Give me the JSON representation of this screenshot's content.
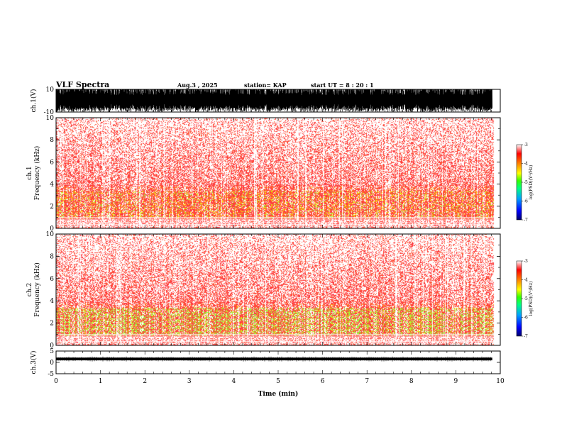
{
  "header": {
    "title": "VLF Spectra",
    "date": "Aug.3 , 2025",
    "station": "station= KAP",
    "start": "start UT = 8 : 20 : 1"
  },
  "colors": {
    "spec_bg": "#ffffff",
    "low": "#ff2a2a",
    "mid": "#ffcc00",
    "high": "#66ff33",
    "waveform": "#000000"
  },
  "chart_data": [
    {
      "type": "line",
      "name": "ch1-waveform",
      "ylabel": "ch.1(V)",
      "ylim": [
        -10,
        10
      ],
      "yticks": [
        {
          "v": 10,
          "t": "10"
        },
        {
          "v": -10,
          "t": "-10"
        }
      ],
      "xlim": [
        0,
        10
      ],
      "note": "dense broadband waveform filling ~+-10 V until ~9.8 min"
    },
    {
      "type": "heatmap",
      "name": "ch1-spectrogram",
      "ylabel": "ch.1\nFrequency (kHz)",
      "ylim": [
        0,
        10
      ],
      "yticks": [
        {
          "v": 0,
          "t": "0"
        },
        {
          "v": 2,
          "t": "2"
        },
        {
          "v": 4,
          "t": "4"
        },
        {
          "v": 6,
          "t": "6"
        },
        {
          "v": 8,
          "t": "8"
        },
        {
          "v": 10,
          "t": "10"
        }
      ],
      "xlim": [
        0,
        10
      ],
      "data_end_min": 9.85,
      "colorbar": {
        "label": "log(PSD)(V²/Hz)",
        "range": [
          -7,
          -3
        ],
        "ticks": [
          "-3",
          "-4",
          "-5",
          "-6",
          "-7"
        ]
      }
    },
    {
      "type": "heatmap",
      "name": "ch2-spectrogram",
      "ylabel": "ch.2\nFrequency (kHz)",
      "ylim": [
        0,
        10
      ],
      "yticks": [
        {
          "v": 0,
          "t": "0"
        },
        {
          "v": 2,
          "t": "2"
        },
        {
          "v": 4,
          "t": "4"
        },
        {
          "v": 6,
          "t": "6"
        },
        {
          "v": 8,
          "t": "8"
        },
        {
          "v": 10,
          "t": "10"
        }
      ],
      "xlim": [
        0,
        10
      ],
      "data_end_min": 9.85,
      "colorbar": {
        "label": "log(PSD)(V²/Hz)",
        "range": [
          -7,
          -3
        ],
        "ticks": [
          "-3",
          "-4",
          "-5",
          "-6",
          "-7"
        ]
      }
    },
    {
      "type": "line",
      "name": "ch3-waveform",
      "ylabel": "ch.3(V)",
      "ylim": [
        -5,
        5
      ],
      "yticks": [
        {
          "v": 5,
          "t": "5"
        },
        {
          "v": 0,
          "t": "0"
        },
        {
          "v": -5,
          "t": "-5"
        }
      ],
      "xlim": [
        0,
        10
      ],
      "note": "narrow band around ~1.5 V until ~9.8 min",
      "center": 1.5,
      "amplitude": 0.6
    }
  ],
  "xaxis": {
    "label": "Time (min)",
    "ticks": [
      "0",
      "1",
      "2",
      "3",
      "4",
      "5",
      "6",
      "7",
      "8",
      "9",
      "10"
    ]
  }
}
